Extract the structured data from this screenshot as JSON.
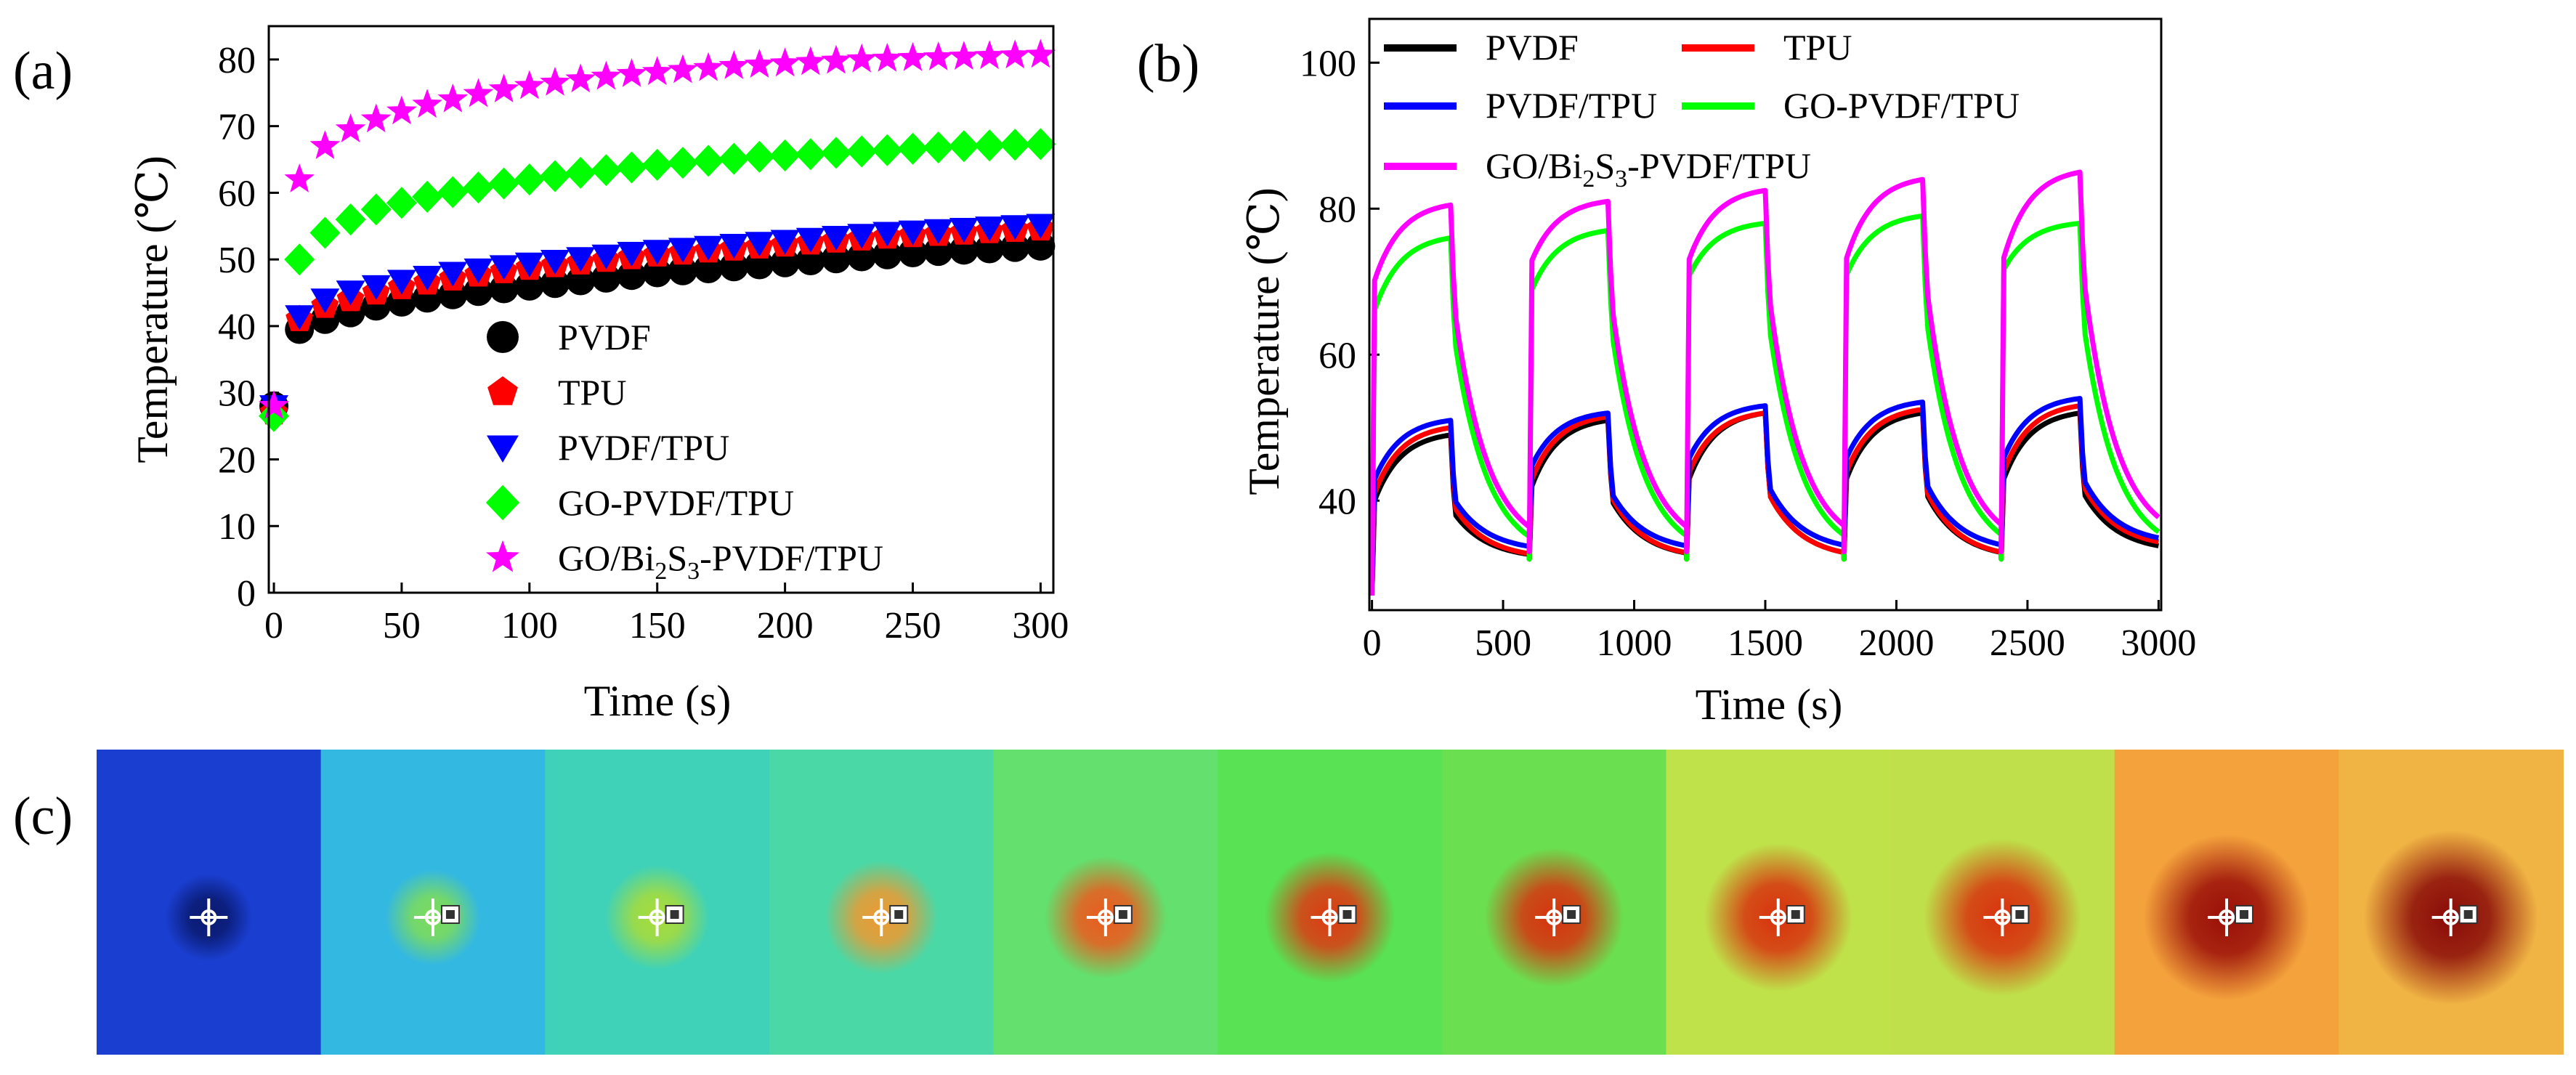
{
  "figure": {
    "labels": {
      "a": "(a)",
      "b": "(b)",
      "c": "(c)"
    }
  },
  "chart_data": [
    {
      "id": "a",
      "type": "scatter",
      "title": "",
      "xlabel": "Time (s)",
      "ylabel": "Temperature (℃)",
      "ylabel_main": "Temperature",
      "ylabel_unit": "(℃)",
      "xlim": [
        -2,
        305
      ],
      "ylim": [
        0,
        85
      ],
      "xticks": [
        0,
        50,
        100,
        150,
        200,
        250,
        300
      ],
      "yticks": [
        0,
        10,
        20,
        30,
        40,
        50,
        60,
        70,
        80
      ],
      "legend_position": "bottom-center",
      "x": [
        0,
        10,
        20,
        30,
        40,
        50,
        60,
        70,
        80,
        90,
        100,
        110,
        120,
        130,
        140,
        150,
        160,
        170,
        180,
        190,
        200,
        210,
        220,
        230,
        240,
        250,
        260,
        270,
        280,
        290,
        300
      ],
      "series": [
        {
          "name": "PVDF",
          "legend_main": "PVDF",
          "marker": "circle",
          "color": "#000000",
          "values": [
            28,
            39.5,
            41,
            42,
            43,
            43.6,
            44.2,
            44.7,
            45.2,
            45.6,
            46,
            46.4,
            46.8,
            47.2,
            47.6,
            48,
            48.3,
            48.6,
            48.9,
            49.2,
            49.5,
            49.8,
            50.1,
            50.4,
            50.7,
            51,
            51.2,
            51.4,
            51.6,
            51.8,
            52
          ]
        },
        {
          "name": "TPU",
          "legend_main": "TPU",
          "marker": "pentagon",
          "color": "#ff0000",
          "values": [
            27,
            41,
            43,
            44,
            45,
            45.8,
            46.5,
            47.1,
            47.7,
            48.2,
            48.7,
            49.1,
            49.5,
            49.9,
            50.3,
            50.7,
            51,
            51.3,
            51.6,
            51.9,
            52.2,
            52.5,
            52.8,
            53.1,
            53.4,
            53.6,
            53.8,
            54,
            54.2,
            54.4,
            54.6
          ]
        },
        {
          "name": "PVDF/TPU",
          "legend_main": "PVDF/TPU",
          "marker": "triangle-down",
          "color": "#0000ff",
          "values": [
            28,
            41.5,
            44,
            45.2,
            46,
            46.8,
            47.4,
            48,
            48.5,
            49,
            49.4,
            49.8,
            50.2,
            50.6,
            51,
            51.3,
            51.6,
            51.9,
            52.2,
            52.5,
            52.8,
            53.1,
            53.4,
            53.7,
            54,
            54.2,
            54.4,
            54.6,
            54.8,
            55,
            55.2
          ]
        },
        {
          "name": "GO-PVDF/TPU",
          "legend_main": "GO-PVDF/TPU",
          "marker": "diamond",
          "color": "#00ff00",
          "values": [
            26.5,
            50,
            54,
            56,
            57.5,
            58.5,
            59.4,
            60.1,
            60.8,
            61.4,
            62,
            62.5,
            63,
            63.4,
            63.8,
            64.2,
            64.5,
            64.8,
            65.1,
            65.4,
            65.6,
            65.8,
            66,
            66.2,
            66.4,
            66.6,
            66.8,
            67,
            67.1,
            67.2,
            67.3
          ]
        },
        {
          "name": "GO/Bi2S3-PVDF/TPU",
          "legend_main": "GO/Bi",
          "legend_sub1": "2",
          "legend_mid": "S",
          "legend_sub2": "3",
          "legend_tail": "-PVDF/TPU",
          "marker": "star",
          "color": "#ff00ff",
          "values": [
            28,
            62,
            67,
            69.5,
            71,
            72.2,
            73.2,
            74,
            74.8,
            75.5,
            76,
            76.5,
            77,
            77.4,
            77.8,
            78.1,
            78.4,
            78.7,
            79,
            79.2,
            79.4,
            79.6,
            79.8,
            80,
            80.1,
            80.2,
            80.3,
            80.4,
            80.5,
            80.6,
            80.7
          ]
        }
      ]
    },
    {
      "id": "b",
      "type": "line",
      "title": "",
      "xlabel": "Time (s)",
      "ylabel": "Temperature (℃)",
      "ylabel_main": "Temperature",
      "ylabel_unit": "(℃)",
      "xlim": [
        -10,
        3010
      ],
      "ylim": [
        25,
        106
      ],
      "xticks": [
        0,
        500,
        1000,
        1500,
        2000,
        2500,
        3000
      ],
      "yticks": [
        40,
        60,
        80,
        100
      ],
      "legend_position": "top-left",
      "cycle": {
        "on_start": [
          0,
          600,
          1200,
          1800,
          2400
        ],
        "on_duration": 300,
        "off_duration": 300
      },
      "series": [
        {
          "name": "PVDF",
          "legend_main": "PVDF",
          "color": "#000000",
          "base_start": [
            27,
            32,
            32,
            32,
            32
          ],
          "heat_jump": [
            39,
            41,
            42,
            42,
            42
          ],
          "heat_peak": [
            49,
            51,
            52,
            52,
            52
          ],
          "cool_end": 33
        },
        {
          "name": "TPU",
          "legend_main": "TPU",
          "color": "#ff0000",
          "base_start": [
            27,
            32,
            32,
            32,
            32
          ],
          "heat_jump": [
            40,
            42,
            43,
            43,
            43
          ],
          "heat_peak": [
            50,
            51.5,
            52,
            52.5,
            53
          ],
          "cool_end": 33.5
        },
        {
          "name": "PVDF/TPU",
          "legend_main": "PVDF/TPU",
          "color": "#0000ff",
          "base_start": [
            27,
            33,
            33,
            33,
            33
          ],
          "heat_jump": [
            42,
            44,
            45,
            45,
            45
          ],
          "heat_peak": [
            51,
            52,
            53,
            53.5,
            54
          ],
          "cool_end": 34
        },
        {
          "name": "GO-PVDF/TPU",
          "legend_main": "GO-PVDF/TPU",
          "color": "#00ff00",
          "base_start": [
            27,
            32,
            32,
            32,
            32
          ],
          "heat_jump": [
            65,
            68,
            70,
            70,
            71
          ],
          "heat_peak": [
            76,
            77,
            78,
            79,
            78
          ],
          "cool_end": 32.5
        },
        {
          "name": "GO/Bi2S3-PVDF/TPU",
          "legend_main": "GO/Bi",
          "legend_sub1": "2",
          "legend_mid": "S",
          "legend_sub2": "3",
          "legend_tail": "-PVDF/TPU",
          "color": "#ff00ff",
          "base_start": [
            27,
            33,
            33,
            33,
            33
          ],
          "heat_jump": [
            69,
            72,
            72,
            72,
            72
          ],
          "heat_peak": [
            80.5,
            81,
            82.5,
            84,
            85
          ],
          "cool_end": 34
        }
      ]
    }
  ],
  "thermal_frames": [
    {
      "bg": "#1a3ed0",
      "spot": "#0a1a70",
      "marker": "crosshair"
    },
    {
      "bg": "#33b8e2",
      "spot": "#7ddc5a",
      "marker": "crosshair-square"
    },
    {
      "bg": "#3fd2b8",
      "spot": "#a8dc3a",
      "marker": "crosshair-square"
    },
    {
      "bg": "#4ad8a6",
      "spot": "#ec9a32",
      "marker": "crosshair-square"
    },
    {
      "bg": "#63e06e",
      "spot": "#ec5a1e",
      "marker": "crosshair-square"
    },
    {
      "bg": "#58e254",
      "spot": "#dd3a12",
      "marker": "crosshair-square"
    },
    {
      "bg": "#6ae050",
      "spot": "#d8320e",
      "marker": "crosshair-square"
    },
    {
      "bg": "#bfe24a",
      "spot": "#d8320e",
      "marker": "crosshair-square"
    },
    {
      "bg": "#bfe04a",
      "spot": "#d8320e",
      "marker": "crosshair-square"
    },
    {
      "bg": "#f4a23c",
      "spot": "#9a0e08",
      "marker": "crosshair-square"
    },
    {
      "bg": "#f0b444",
      "spot": "#8a0a08",
      "marker": "crosshair-square"
    }
  ]
}
